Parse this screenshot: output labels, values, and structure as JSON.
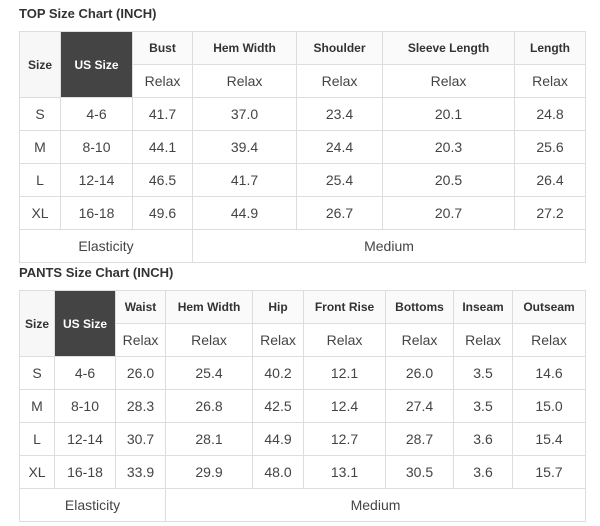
{
  "top": {
    "title": "TOP Size Chart (INCH)",
    "size_label": "Size",
    "us_size_label": "US Size",
    "columns": [
      "Bust",
      "Hem Width",
      "Shoulder",
      "Sleeve Length",
      "Length"
    ],
    "subheader": "Relax",
    "rows": [
      {
        "size": "S",
        "us": "4-6",
        "values": [
          "41.7",
          "37.0",
          "23.4",
          "20.1",
          "24.8"
        ]
      },
      {
        "size": "M",
        "us": "8-10",
        "values": [
          "44.1",
          "39.4",
          "24.4",
          "20.3",
          "25.6"
        ]
      },
      {
        "size": "L",
        "us": "12-14",
        "values": [
          "46.5",
          "41.7",
          "25.4",
          "20.5",
          "26.4"
        ]
      },
      {
        "size": "XL",
        "us": "16-18",
        "values": [
          "49.6",
          "44.9",
          "26.7",
          "20.7",
          "27.2"
        ]
      }
    ],
    "elasticity_label": "Elasticity",
    "elasticity_value": "Medium"
  },
  "pants": {
    "title": "PANTS Size Chart (INCH)",
    "size_label": "Size",
    "us_size_label": "US Size",
    "columns": [
      "Waist",
      "Hem Width",
      "Hip",
      "Front Rise",
      "Bottoms",
      "Inseam",
      "Outseam"
    ],
    "subheader": "Relax",
    "rows": [
      {
        "size": "S",
        "us": "4-6",
        "values": [
          "26.0",
          "25.4",
          "40.2",
          "12.1",
          "26.0",
          "3.5",
          "14.6"
        ]
      },
      {
        "size": "M",
        "us": "8-10",
        "values": [
          "28.3",
          "26.8",
          "42.5",
          "12.4",
          "27.4",
          "3.5",
          "15.0"
        ]
      },
      {
        "size": "L",
        "us": "12-14",
        "values": [
          "30.7",
          "28.1",
          "44.9",
          "12.7",
          "28.7",
          "3.6",
          "15.4"
        ]
      },
      {
        "size": "XL",
        "us": "16-18",
        "values": [
          "33.9",
          "29.9",
          "48.0",
          "13.1",
          "30.5",
          "3.6",
          "15.7"
        ]
      }
    ],
    "elasticity_label": "Elasticity",
    "elasticity_value": "Medium"
  }
}
